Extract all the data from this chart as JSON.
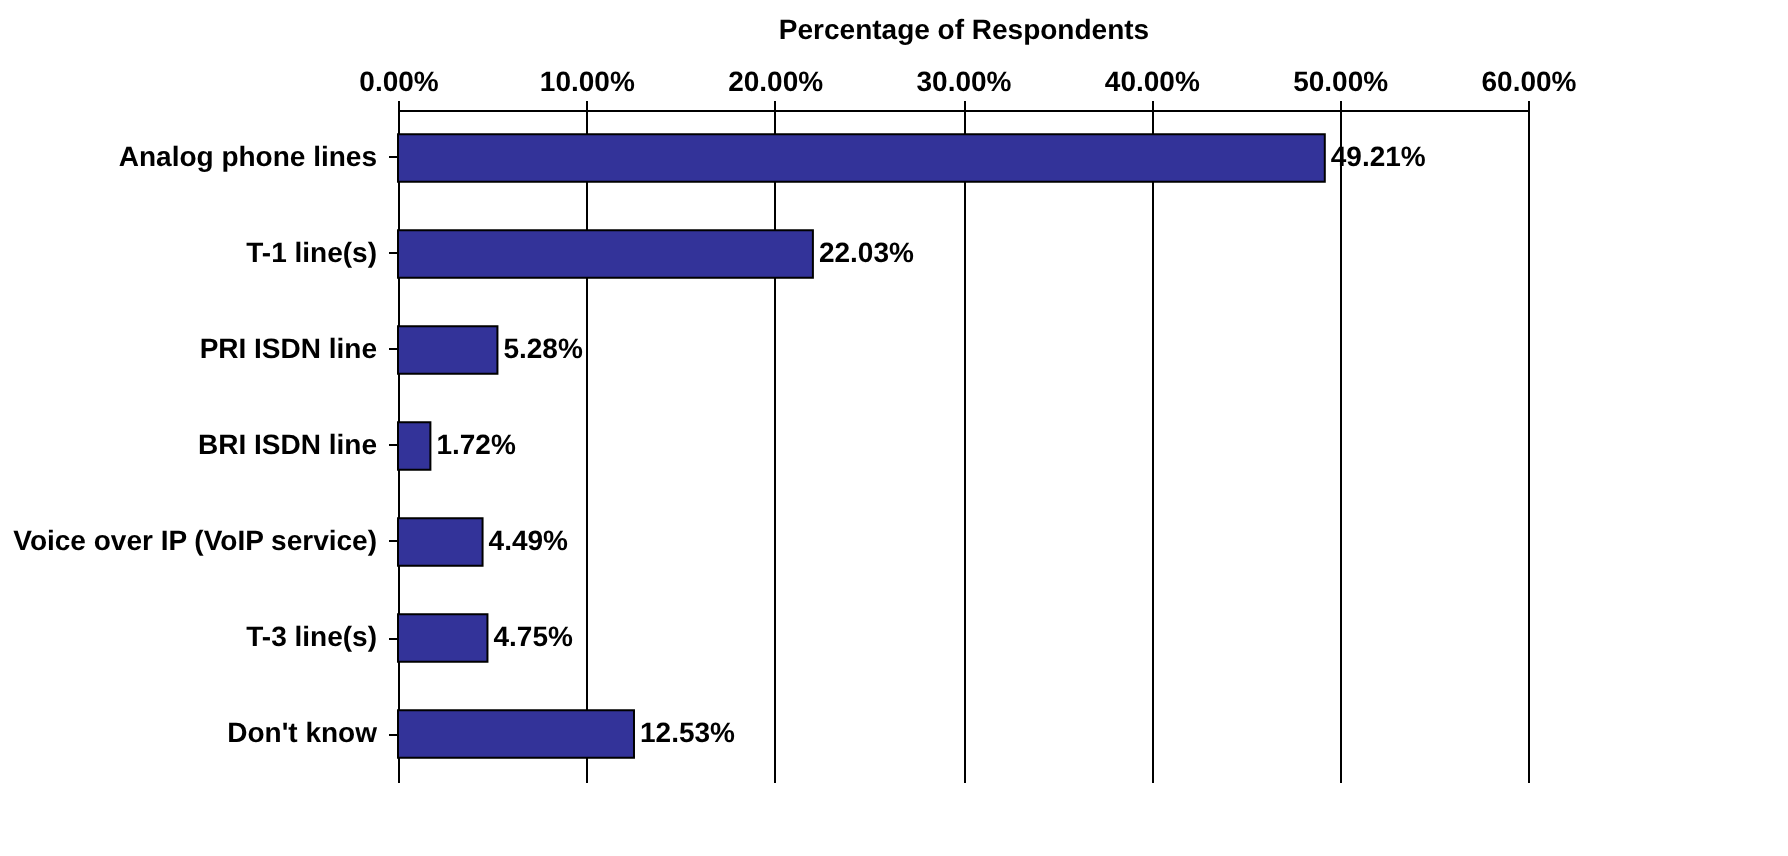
{
  "chart_data": {
    "type": "bar",
    "orientation": "horizontal",
    "xlabel": "Percentage of Respondents",
    "categories": [
      "Analog phone lines",
      "T-1 line(s)",
      "PRI ISDN line",
      "BRI ISDN line",
      "Voice over IP (VoIP service)",
      "T-3 line(s)",
      "Don't know"
    ],
    "values": [
      49.21,
      22.03,
      5.28,
      1.72,
      4.49,
      4.75,
      12.53
    ],
    "value_labels": [
      "49.21%",
      "22.03%",
      "5.28%",
      "1.72%",
      "4.49%",
      "4.75%",
      "12.53%"
    ],
    "color": "#333399",
    "xlim": [
      0,
      60
    ],
    "xticks": [
      {
        "value": 0,
        "label": "0.00%"
      },
      {
        "value": 10,
        "label": "10.00%"
      },
      {
        "value": 20,
        "label": "20.00%"
      },
      {
        "value": 30,
        "label": "30.00%"
      },
      {
        "value": 40,
        "label": "40.00%"
      },
      {
        "value": 50,
        "label": "50.00%"
      },
      {
        "value": 60,
        "label": "60.00%"
      }
    ],
    "grid": "x"
  }
}
